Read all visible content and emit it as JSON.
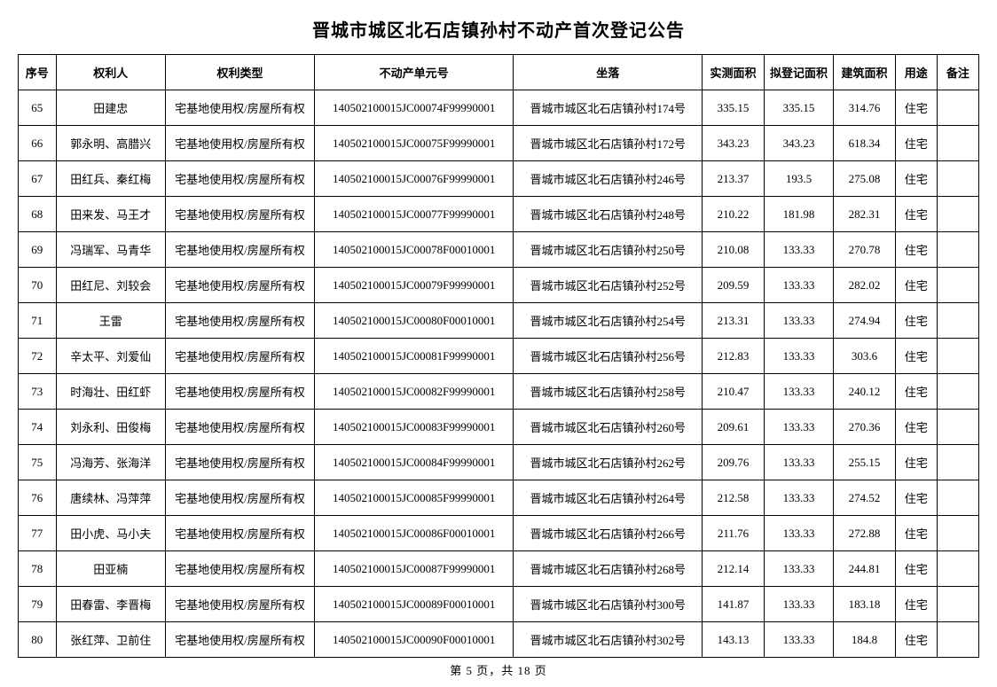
{
  "title": "晋城市城区北石店镇孙村不动产首次登记公告",
  "footer": "第 5 页，共 18 页",
  "columns": [
    "序号",
    "权利人",
    "权利类型",
    "不动产单元号",
    "坐落",
    "实测面积",
    "拟登记面积",
    "建筑面积",
    "用途",
    "备注"
  ],
  "rows": [
    [
      "65",
      "田建忠",
      "宅基地使用权/房屋所有权",
      "140502100015JC00074F99990001",
      "晋城市城区北石店镇孙村174号",
      "335.15",
      "335.15",
      "314.76",
      "住宅",
      ""
    ],
    [
      "66",
      "郭永明、高腊兴",
      "宅基地使用权/房屋所有权",
      "140502100015JC00075F99990001",
      "晋城市城区北石店镇孙村172号",
      "343.23",
      "343.23",
      "618.34",
      "住宅",
      ""
    ],
    [
      "67",
      "田红兵、秦红梅",
      "宅基地使用权/房屋所有权",
      "140502100015JC00076F99990001",
      "晋城市城区北石店镇孙村246号",
      "213.37",
      "193.5",
      "275.08",
      "住宅",
      ""
    ],
    [
      "68",
      "田来发、马王才",
      "宅基地使用权/房屋所有权",
      "140502100015JC00077F99990001",
      "晋城市城区北石店镇孙村248号",
      "210.22",
      "181.98",
      "282.31",
      "住宅",
      ""
    ],
    [
      "69",
      "冯瑞军、马青华",
      "宅基地使用权/房屋所有权",
      "140502100015JC00078F00010001",
      "晋城市城区北石店镇孙村250号",
      "210.08",
      "133.33",
      "270.78",
      "住宅",
      ""
    ],
    [
      "70",
      "田红尼、刘较会",
      "宅基地使用权/房屋所有权",
      "140502100015JC00079F99990001",
      "晋城市城区北石店镇孙村252号",
      "209.59",
      "133.33",
      "282.02",
      "住宅",
      ""
    ],
    [
      "71",
      "王雷",
      "宅基地使用权/房屋所有权",
      "140502100015JC00080F00010001",
      "晋城市城区北石店镇孙村254号",
      "213.31",
      "133.33",
      "274.94",
      "住宅",
      ""
    ],
    [
      "72",
      "辛太平、刘爱仙",
      "宅基地使用权/房屋所有权",
      "140502100015JC00081F99990001",
      "晋城市城区北石店镇孙村256号",
      "212.83",
      "133.33",
      "303.6",
      "住宅",
      ""
    ],
    [
      "73",
      "时海壮、田红虾",
      "宅基地使用权/房屋所有权",
      "140502100015JC00082F99990001",
      "晋城市城区北石店镇孙村258号",
      "210.47",
      "133.33",
      "240.12",
      "住宅",
      ""
    ],
    [
      "74",
      "刘永利、田俊梅",
      "宅基地使用权/房屋所有权",
      "140502100015JC00083F99990001",
      "晋城市城区北石店镇孙村260号",
      "209.61",
      "133.33",
      "270.36",
      "住宅",
      ""
    ],
    [
      "75",
      "冯海芳、张海洋",
      "宅基地使用权/房屋所有权",
      "140502100015JC00084F99990001",
      "晋城市城区北石店镇孙村262号",
      "209.76",
      "133.33",
      "255.15",
      "住宅",
      ""
    ],
    [
      "76",
      "唐续林、冯萍萍",
      "宅基地使用权/房屋所有权",
      "140502100015JC00085F99990001",
      "晋城市城区北石店镇孙村264号",
      "212.58",
      "133.33",
      "274.52",
      "住宅",
      ""
    ],
    [
      "77",
      "田小虎、马小夫",
      "宅基地使用权/房屋所有权",
      "140502100015JC00086F00010001",
      "晋城市城区北石店镇孙村266号",
      "211.76",
      "133.33",
      "272.88",
      "住宅",
      ""
    ],
    [
      "78",
      "田亚楠",
      "宅基地使用权/房屋所有权",
      "140502100015JC00087F99990001",
      "晋城市城区北石店镇孙村268号",
      "212.14",
      "133.33",
      "244.81",
      "住宅",
      ""
    ],
    [
      "79",
      "田春雷、李晋梅",
      "宅基地使用权/房屋所有权",
      "140502100015JC00089F00010001",
      "晋城市城区北石店镇孙村300号",
      "141.87",
      "133.33",
      "183.18",
      "住宅",
      ""
    ],
    [
      "80",
      "张红萍、卫前住",
      "宅基地使用权/房屋所有权",
      "140502100015JC00090F00010001",
      "晋城市城区北石店镇孙村302号",
      "143.13",
      "133.33",
      "184.8",
      "住宅",
      ""
    ]
  ]
}
